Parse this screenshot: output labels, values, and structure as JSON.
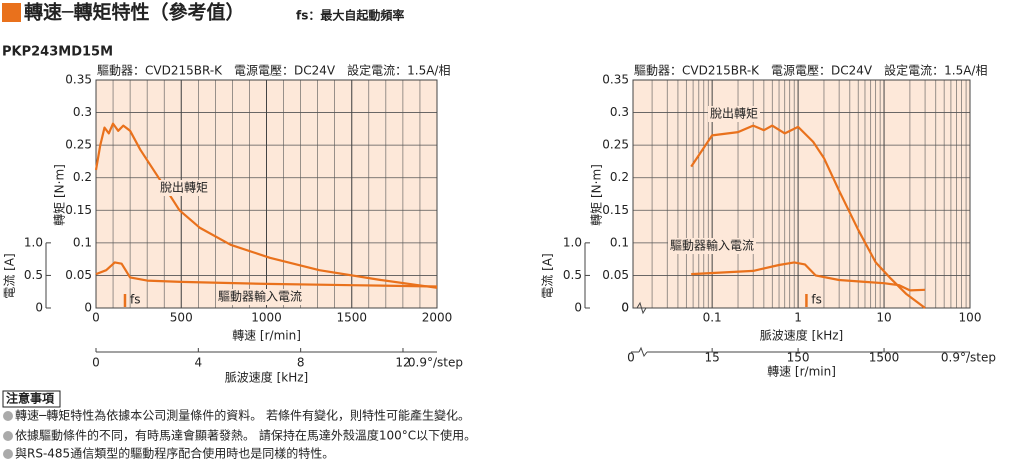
{
  "header": {
    "title": "轉速─轉矩特性（參考值）",
    "subtitle": "fs：最大自起動頻率",
    "model": "PKP243MD15M",
    "break_label": "0"
  },
  "notes": {
    "title": "注意事項",
    "items": [
      "轉速─轉矩特性為依據本公司測量條件的資料。 若條件有變化，則特性可能產生變化。",
      "依據驅動條件的不同，有時馬達會顯著發熱。 請保持在馬達外殼溫度100°C以下使用。",
      "與RS-485通信類型的驅動程序配合使用時也是同樣的特性。"
    ]
  },
  "chart_data": [
    {
      "type": "line",
      "title": "驅動器：CVD215BR-K　電源電壓：DC24V　設定電流：1.5A/相",
      "xlabel": "轉速 [r/min]",
      "ylabel": "轉矩 [N·m]",
      "y2label": "電流 [A]",
      "xlim": [
        0,
        2000
      ],
      "xticks": [
        0,
        500,
        1000,
        1500,
        2000
      ],
      "xlog": false,
      "ylim": [
        0,
        0.35
      ],
      "yticks": [
        0,
        0.05,
        0.1,
        0.15,
        0.2,
        0.25,
        0.3,
        0.35
      ],
      "y2lim": [
        0,
        3.5
      ],
      "y2ticks": [
        0,
        0.5,
        {
          "value": 1,
          "label": "1.0"
        }
      ],
      "x2label": "脈波速度 [kHz]",
      "x2unit": "0.9°/step",
      "x2lim": [
        0,
        13.33
      ],
      "x2ticks": [
        0,
        4,
        8,
        12
      ],
      "x2log": false,
      "grid": true,
      "minor_grid": true,
      "fs": {
        "x": 170,
        "label": "fs"
      },
      "series": [
        {
          "name": "脫出轉矩",
          "color": "#e9711c",
          "x": [
            0,
            25,
            50,
            75,
            100,
            130,
            160,
            200,
            260,
            375,
            490,
            610,
            790,
            1020,
            1310,
            1670,
            2000
          ],
          "values": [
            0.212,
            0.25,
            0.277,
            0.268,
            0.283,
            0.272,
            0.28,
            0.272,
            0.243,
            0.197,
            0.15,
            0.123,
            0.097,
            0.077,
            0.058,
            0.043,
            0.031
          ]
        },
        {
          "name": "驅動器輸入電流",
          "color": "#e9711c",
          "axis": "y2",
          "x": [
            0,
            60,
            110,
            150,
            200,
            300,
            500,
            1000,
            1500,
            2000
          ],
          "values": [
            0.52,
            0.58,
            0.7,
            0.68,
            0.47,
            0.42,
            0.4,
            0.37,
            0.35,
            0.33
          ]
        }
      ]
    },
    {
      "type": "line",
      "title": "驅動器：CVD215BR-K　電源電壓：DC24V　設定電流：1.5A/相",
      "xlabel": "脈波速度 [kHz]",
      "ylabel": "轉矩 [N·m]",
      "y2label": "電流 [A]",
      "xlim": [
        0.012,
        100
      ],
      "xticks": [
        0.1,
        1,
        10,
        100
      ],
      "xlog": true,
      "ylim": [
        0,
        0.35
      ],
      "yticks": [
        0,
        0.05,
        0.1,
        0.15,
        0.2,
        0.25,
        0.3,
        0.35
      ],
      "y2lim": [
        0,
        3.5
      ],
      "y2ticks": [
        0,
        0.5,
        {
          "value": 1,
          "label": "1.0"
        }
      ],
      "x2label": "轉速 [r/min]",
      "x2unit": "0.9°/step",
      "x2lim": [
        1.8,
        15000
      ],
      "x2ticks": [
        15,
        150,
        1500
      ],
      "x2log": true,
      "grid": true,
      "minor_grid": true,
      "fs": {
        "x": 1.25,
        "label": "fs"
      },
      "series": [
        {
          "name": "脫出轉矩",
          "color": "#e9711c",
          "x": [
            0.057,
            0.1,
            0.2,
            0.3,
            0.4,
            0.5,
            0.7,
            1,
            1.5,
            2,
            3,
            5,
            8,
            12,
            18,
            30
          ],
          "values": [
            0.217,
            0.265,
            0.27,
            0.28,
            0.273,
            0.28,
            0.268,
            0.278,
            0.255,
            0.23,
            0.18,
            0.12,
            0.07,
            0.045,
            0.022,
            0
          ]
        },
        {
          "name": "驅動器輸入電流",
          "color": "#e9711c",
          "axis": "y2",
          "x": [
            0.057,
            0.3,
            0.6,
            0.9,
            1.2,
            1.6,
            3,
            6,
            10,
            15,
            20,
            30
          ],
          "values": [
            0.52,
            0.57,
            0.66,
            0.7,
            0.67,
            0.5,
            0.43,
            0.4,
            0.38,
            0.35,
            0.27,
            0.28
          ]
        }
      ]
    }
  ]
}
